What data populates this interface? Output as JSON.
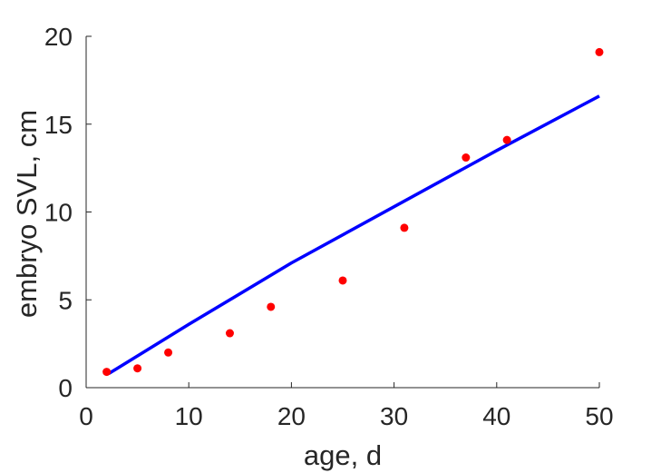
{
  "chart_data": {
    "type": "scatter",
    "xlabel": "age, d",
    "ylabel": "embryo SVL, cm",
    "xlim": [
      0,
      50
    ],
    "ylim": [
      0,
      20
    ],
    "xticks": [
      "0",
      "10",
      "20",
      "30",
      "40",
      "50"
    ],
    "yticks": [
      "0",
      "5",
      "10",
      "15",
      "20"
    ],
    "grid": false,
    "series": [
      {
        "type": "scatter",
        "color": "#ff0000",
        "points": [
          {
            "x": 2,
            "y": 0.9
          },
          {
            "x": 5,
            "y": 1.1
          },
          {
            "x": 8,
            "y": 2.0
          },
          {
            "x": 14,
            "y": 3.1
          },
          {
            "x": 18,
            "y": 4.6
          },
          {
            "x": 25,
            "y": 6.1
          },
          {
            "x": 31,
            "y": 9.1
          },
          {
            "x": 37,
            "y": 13.1
          },
          {
            "x": 41,
            "y": 14.1
          },
          {
            "x": 50,
            "y": 19.1
          }
        ]
      },
      {
        "type": "line",
        "color": "#0000ff",
        "points": [
          {
            "x": 2.2,
            "y": 0.8
          },
          {
            "x": 10,
            "y": 3.6
          },
          {
            "x": 20,
            "y": 7.1
          },
          {
            "x": 30,
            "y": 10.3
          },
          {
            "x": 40,
            "y": 13.5
          },
          {
            "x": 50,
            "y": 16.6
          }
        ]
      }
    ]
  }
}
